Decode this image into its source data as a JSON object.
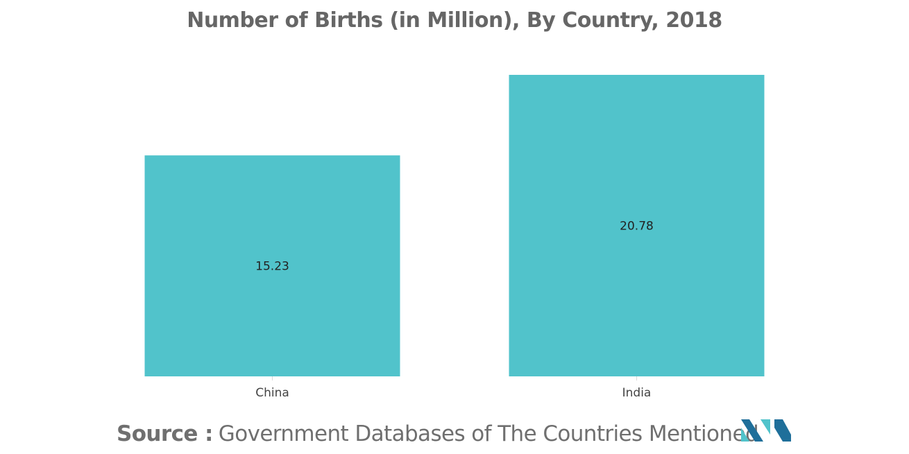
{
  "chart_data": {
    "type": "bar",
    "title": "Number of Births (in Million), By Country, 2018",
    "categories": [
      "China",
      "India"
    ],
    "values": [
      15.23,
      20.78
    ],
    "value_labels": [
      "15.23",
      "20.78"
    ],
    "xlabel": "",
    "ylabel": "",
    "ylim": [
      0,
      20.78
    ],
    "grid": false,
    "legend": "none",
    "bar_color": "#51C3CB",
    "data_label_position": "center"
  },
  "source": {
    "label": "Source :",
    "text": "Government Databases of The Countries Mentioned"
  },
  "colors": {
    "title_text": "#666666",
    "axis": "#d9d9d9",
    "logo_dark": "#1f6f9a",
    "logo_light": "#51C3CB"
  }
}
